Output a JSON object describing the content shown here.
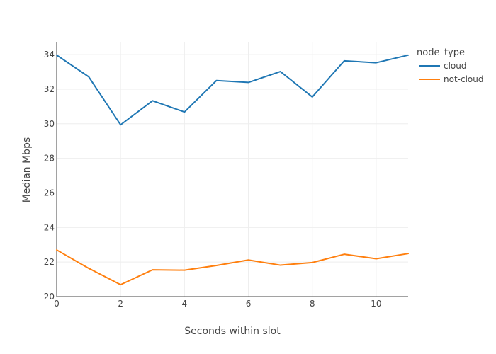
{
  "chart_data": {
    "type": "line",
    "title": "",
    "xlabel": "Seconds within slot",
    "ylabel": "Median Mbps",
    "xlim": [
      0,
      11
    ],
    "ylim": [
      20,
      34.7
    ],
    "x_ticks": [
      0,
      2,
      4,
      6,
      8,
      10
    ],
    "y_ticks": [
      20,
      22,
      24,
      26,
      28,
      30,
      32,
      34
    ],
    "grid": true,
    "legend_title": "node_type",
    "legend_position": "top-right",
    "x": [
      0,
      1,
      2,
      3,
      4,
      5,
      6,
      7,
      8,
      9,
      10,
      11
    ],
    "series": [
      {
        "name": "cloud",
        "color": "#1f77b4",
        "values": [
          33.97,
          32.72,
          29.94,
          31.33,
          30.68,
          32.5,
          32.39,
          33.02,
          31.55,
          33.64,
          33.53,
          33.97
        ]
      },
      {
        "name": "not-cloud",
        "color": "#ff7f0e",
        "values": [
          22.7,
          21.64,
          20.69,
          21.55,
          21.53,
          21.8,
          22.12,
          21.82,
          21.97,
          22.45,
          22.19,
          22.49
        ]
      }
    ]
  }
}
